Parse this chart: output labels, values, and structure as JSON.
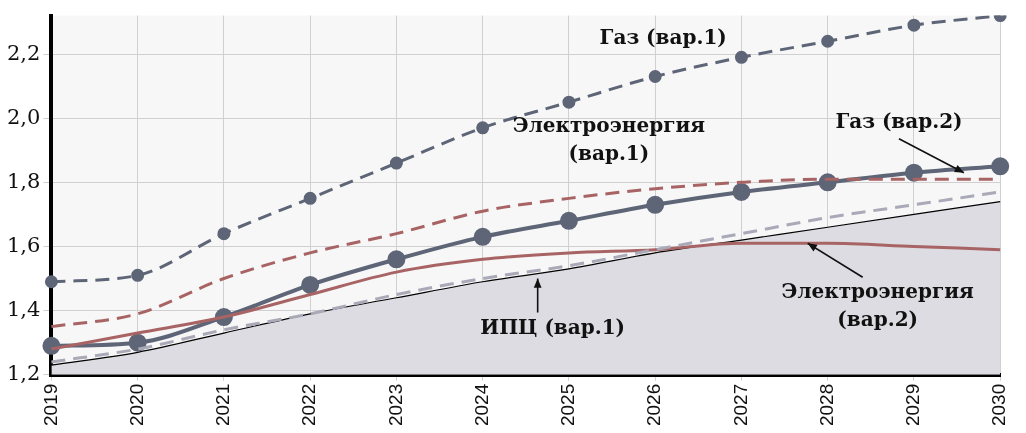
{
  "chart_data": {
    "type": "line",
    "categories": [
      "2019",
      "2020",
      "2021",
      "2022",
      "2023",
      "2024",
      "2025",
      "2026",
      "2027",
      "2028",
      "2029",
      "2030"
    ],
    "ylim": [
      1.2,
      2.32
    ],
    "yticks": [
      {
        "value": 1.2,
        "label": "1,2"
      },
      {
        "value": 1.4,
        "label": "1,4"
      },
      {
        "value": 1.6,
        "label": "1,6"
      },
      {
        "value": 1.8,
        "label": "1,8"
      },
      {
        "value": 2.0,
        "label": "2,0"
      },
      {
        "value": 2.2,
        "label": "2,2"
      }
    ],
    "grid": true,
    "series": [
      {
        "type": "area",
        "color": "#dcdce2",
        "values": [
          1.23,
          1.27,
          1.33,
          1.39,
          1.44,
          1.49,
          1.53,
          1.58,
          1.62,
          1.66,
          1.7,
          1.74
        ]
      },
      {
        "color": "#a9a9b8",
        "line_style": "dashed",
        "marker": "none",
        "values": [
          1.24,
          1.28,
          1.34,
          1.39,
          1.45,
          1.5,
          1.54,
          1.59,
          1.64,
          1.69,
          1.73,
          1.77
        ]
      },
      {
        "color": "#a86464",
        "line_style": "solid",
        "marker": "none",
        "values": [
          1.28,
          1.33,
          1.38,
          1.45,
          1.52,
          1.56,
          1.58,
          1.59,
          1.61,
          1.61,
          1.6,
          1.59
        ]
      },
      {
        "color": "#a86464",
        "line_style": "dashed",
        "marker": "none",
        "values": [
          1.35,
          1.39,
          1.5,
          1.58,
          1.64,
          1.71,
          1.75,
          1.78,
          1.8,
          1.81,
          1.81,
          1.81
        ]
      },
      {
        "color": "#5d6577",
        "line_style": "solid",
        "marker": "circle",
        "values": [
          1.29,
          1.3,
          1.38,
          1.48,
          1.56,
          1.63,
          1.68,
          1.73,
          1.77,
          1.8,
          1.83,
          1.85
        ]
      },
      {
        "color": "#5d6577",
        "line_style": "dashed",
        "marker": "circle",
        "values": [
          1.49,
          1.51,
          1.64,
          1.75,
          1.86,
          1.97,
          2.05,
          2.13,
          2.19,
          2.24,
          2.29,
          2.32
        ]
      }
    ],
    "annotations": [
      {
        "text": "Газ (вар.1)",
        "x": "2026",
        "y": 2.13
      },
      {
        "text": "Электроэнергия\n(вар.1)",
        "x": "2025",
        "y": 1.75
      },
      {
        "text": "Газ (вар.2)",
        "x": "2029",
        "y": 1.83
      },
      {
        "text": "ИПЦ (вар.1)",
        "x": "2024",
        "y": 1.5
      },
      {
        "text": "Электроэнергия\n(вар.2)",
        "x": "2028",
        "y": 1.61
      }
    ]
  }
}
